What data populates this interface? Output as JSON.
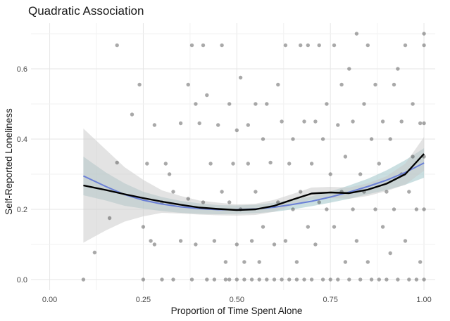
{
  "chart_data": {
    "type": "scatter",
    "title": "Quadratic Association",
    "xlabel": "Proportion of Time Spent Alone",
    "ylabel": "Self-Reported Loneliness",
    "xlim": [
      -0.05,
      1.03
    ],
    "ylim": [
      -0.03,
      0.73
    ],
    "x_ticks": [
      0.0,
      0.25,
      0.5,
      0.75,
      1.0
    ],
    "x_tick_labels": [
      "0.00",
      "0.25",
      "0.50",
      "0.75",
      "1.00"
    ],
    "y_ticks": [
      0.0,
      0.2,
      0.4,
      0.6
    ],
    "y_tick_labels": [
      "0.0",
      "0.2",
      "0.4",
      "0.6"
    ],
    "grid": true,
    "colors": {
      "points": "#333333",
      "linear_fit": "#6a7fd6",
      "loess_fit": "#000000",
      "band_linear": "#9ec4c9",
      "band_loess": "#c8c8c8"
    },
    "points": [
      [
        0.09,
        0.0
      ],
      [
        0.12,
        0.077
      ],
      [
        0.16,
        0.175
      ],
      [
        0.18,
        0.667
      ],
      [
        0.18,
        0.333
      ],
      [
        0.22,
        0.47
      ],
      [
        0.24,
        0.555
      ],
      [
        0.25,
        0.15
      ],
      [
        0.25,
        0.0
      ],
      [
        0.26,
        0.33
      ],
      [
        0.27,
        0.11
      ],
      [
        0.28,
        0.44
      ],
      [
        0.28,
        0.1
      ],
      [
        0.3,
        0.22
      ],
      [
        0.3,
        0.0
      ],
      [
        0.31,
        0.33
      ],
      [
        0.32,
        0.3
      ],
      [
        0.33,
        0.25
      ],
      [
        0.33,
        0.0
      ],
      [
        0.35,
        0.11
      ],
      [
        0.35,
        0.445
      ],
      [
        0.37,
        0.555
      ],
      [
        0.37,
        0.23
      ],
      [
        0.38,
        0.0
      ],
      [
        0.38,
        0.667
      ],
      [
        0.39,
        0.5
      ],
      [
        0.39,
        0.1
      ],
      [
        0.4,
        0.445
      ],
      [
        0.41,
        0.667
      ],
      [
        0.41,
        0.22
      ],
      [
        0.42,
        0.525
      ],
      [
        0.42,
        0.0
      ],
      [
        0.43,
        0.33
      ],
      [
        0.44,
        0.11
      ],
      [
        0.44,
        0.0
      ],
      [
        0.45,
        0.44
      ],
      [
        0.46,
        0.25
      ],
      [
        0.46,
        0.667
      ],
      [
        0.47,
        0.05
      ],
      [
        0.47,
        0.0
      ],
      [
        0.48,
        0.5
      ],
      [
        0.48,
        0.22
      ],
      [
        0.48,
        0.0
      ],
      [
        0.49,
        0.33
      ],
      [
        0.5,
        0.425
      ],
      [
        0.5,
        0.1
      ],
      [
        0.5,
        0.0
      ],
      [
        0.51,
        0.575
      ],
      [
        0.51,
        0.2
      ],
      [
        0.52,
        0.05
      ],
      [
        0.52,
        0.0
      ],
      [
        0.53,
        0.33
      ],
      [
        0.53,
        0.44
      ],
      [
        0.54,
        0.11
      ],
      [
        0.54,
        0.0
      ],
      [
        0.55,
        0.25
      ],
      [
        0.55,
        0.5
      ],
      [
        0.56,
        0.05
      ],
      [
        0.56,
        0.0
      ],
      [
        0.57,
        0.4
      ],
      [
        0.57,
        0.15
      ],
      [
        0.58,
        0.5
      ],
      [
        0.58,
        0.0
      ],
      [
        0.59,
        0.333
      ],
      [
        0.6,
        0.1
      ],
      [
        0.6,
        0.0
      ],
      [
        0.61,
        0.555
      ],
      [
        0.61,
        0.22
      ],
      [
        0.62,
        0.45
      ],
      [
        0.62,
        0.0
      ],
      [
        0.63,
        0.667
      ],
      [
        0.63,
        0.11
      ],
      [
        0.64,
        0.33
      ],
      [
        0.64,
        0.0
      ],
      [
        0.65,
        0.4
      ],
      [
        0.65,
        0.2
      ],
      [
        0.66,
        0.05
      ],
      [
        0.66,
        0.0
      ],
      [
        0.67,
        0.667
      ],
      [
        0.67,
        0.25
      ],
      [
        0.68,
        0.45
      ],
      [
        0.68,
        0.0
      ],
      [
        0.69,
        0.15
      ],
      [
        0.69,
        0.667
      ],
      [
        0.7,
        0.33
      ],
      [
        0.7,
        0.0
      ],
      [
        0.71,
        0.45
      ],
      [
        0.71,
        0.1
      ],
      [
        0.72,
        0.667
      ],
      [
        0.72,
        0.22
      ],
      [
        0.73,
        0.0
      ],
      [
        0.73,
        0.4
      ],
      [
        0.74,
        0.2
      ],
      [
        0.74,
        0.5
      ],
      [
        0.75,
        0.0
      ],
      [
        0.75,
        0.3
      ],
      [
        0.76,
        0.667
      ],
      [
        0.76,
        0.15
      ],
      [
        0.77,
        0.44
      ],
      [
        0.77,
        0.0
      ],
      [
        0.78,
        0.25
      ],
      [
        0.78,
        0.555
      ],
      [
        0.79,
        0.05
      ],
      [
        0.79,
        0.35
      ],
      [
        0.8,
        0.6
      ],
      [
        0.8,
        0.0
      ],
      [
        0.81,
        0.2
      ],
      [
        0.81,
        0.45
      ],
      [
        0.82,
        0.7
      ],
      [
        0.82,
        0.11
      ],
      [
        0.83,
        0.3
      ],
      [
        0.83,
        0.0
      ],
      [
        0.84,
        0.5
      ],
      [
        0.84,
        0.25
      ],
      [
        0.85,
        0.667
      ],
      [
        0.85,
        0.05
      ],
      [
        0.86,
        0.4
      ],
      [
        0.86,
        0.0
      ],
      [
        0.87,
        0.2
      ],
      [
        0.87,
        0.555
      ],
      [
        0.88,
        0.33
      ],
      [
        0.88,
        0.0
      ],
      [
        0.89,
        0.15
      ],
      [
        0.89,
        0.45
      ],
      [
        0.9,
        0.25
      ],
      [
        0.9,
        0.0
      ],
      [
        0.91,
        0.4
      ],
      [
        0.91,
        0.075
      ],
      [
        0.92,
        0.555
      ],
      [
        0.92,
        0.2
      ],
      [
        0.93,
        0.6
      ],
      [
        0.93,
        0.0
      ],
      [
        0.94,
        0.3
      ],
      [
        0.94,
        0.45
      ],
      [
        0.95,
        0.11
      ],
      [
        0.95,
        0.667
      ],
      [
        0.96,
        0.25
      ],
      [
        0.96,
        0.0
      ],
      [
        0.97,
        0.5
      ],
      [
        0.97,
        0.35
      ],
      [
        0.98,
        0.2
      ],
      [
        0.98,
        0.0
      ],
      [
        0.99,
        0.445
      ],
      [
        0.99,
        0.05
      ],
      [
        1.0,
        0.7
      ],
      [
        1.0,
        0.667
      ],
      [
        1.0,
        0.445
      ],
      [
        1.0,
        0.35
      ],
      [
        1.0,
        0.2
      ],
      [
        1.0,
        0.0
      ]
    ],
    "series": [
      {
        "x": [
          0.09,
          0.15,
          0.2,
          0.25,
          0.3,
          0.35,
          0.4,
          0.45,
          0.5,
          0.55,
          0.6,
          0.65,
          0.7,
          0.75,
          0.8,
          0.85,
          0.9,
          0.95,
          1.0
        ],
        "y": [
          0.295,
          0.265,
          0.242,
          0.226,
          0.215,
          0.207,
          0.202,
          0.199,
          0.199,
          0.201,
          0.206,
          0.214,
          0.223,
          0.235,
          0.249,
          0.265,
          0.283,
          0.305,
          0.332
        ],
        "lower": [
          0.24,
          0.225,
          0.21,
          0.202,
          0.195,
          0.19,
          0.187,
          0.186,
          0.187,
          0.189,
          0.193,
          0.2,
          0.209,
          0.219,
          0.23,
          0.243,
          0.255,
          0.27,
          0.29
        ],
        "upper": [
          0.35,
          0.305,
          0.274,
          0.25,
          0.235,
          0.224,
          0.217,
          0.212,
          0.211,
          0.213,
          0.219,
          0.228,
          0.237,
          0.251,
          0.268,
          0.287,
          0.311,
          0.34,
          0.374
        ]
      },
      {
        "x": [
          0.09,
          0.15,
          0.2,
          0.25,
          0.3,
          0.35,
          0.4,
          0.45,
          0.5,
          0.55,
          0.6,
          0.65,
          0.7,
          0.75,
          0.8,
          0.85,
          0.9,
          0.95,
          1.0
        ],
        "y": [
          0.268,
          0.255,
          0.243,
          0.232,
          0.222,
          0.213,
          0.205,
          0.201,
          0.198,
          0.2,
          0.21,
          0.228,
          0.245,
          0.248,
          0.246,
          0.256,
          0.273,
          0.3,
          0.358
        ],
        "lower": [
          0.105,
          0.14,
          0.165,
          0.18,
          0.19,
          0.188,
          0.185,
          0.183,
          0.182,
          0.184,
          0.193,
          0.212,
          0.228,
          0.232,
          0.23,
          0.238,
          0.252,
          0.27,
          0.31
        ],
        "upper": [
          0.43,
          0.37,
          0.32,
          0.284,
          0.254,
          0.238,
          0.225,
          0.219,
          0.214,
          0.216,
          0.227,
          0.244,
          0.262,
          0.264,
          0.262,
          0.274,
          0.294,
          0.33,
          0.406
        ]
      }
    ]
  }
}
